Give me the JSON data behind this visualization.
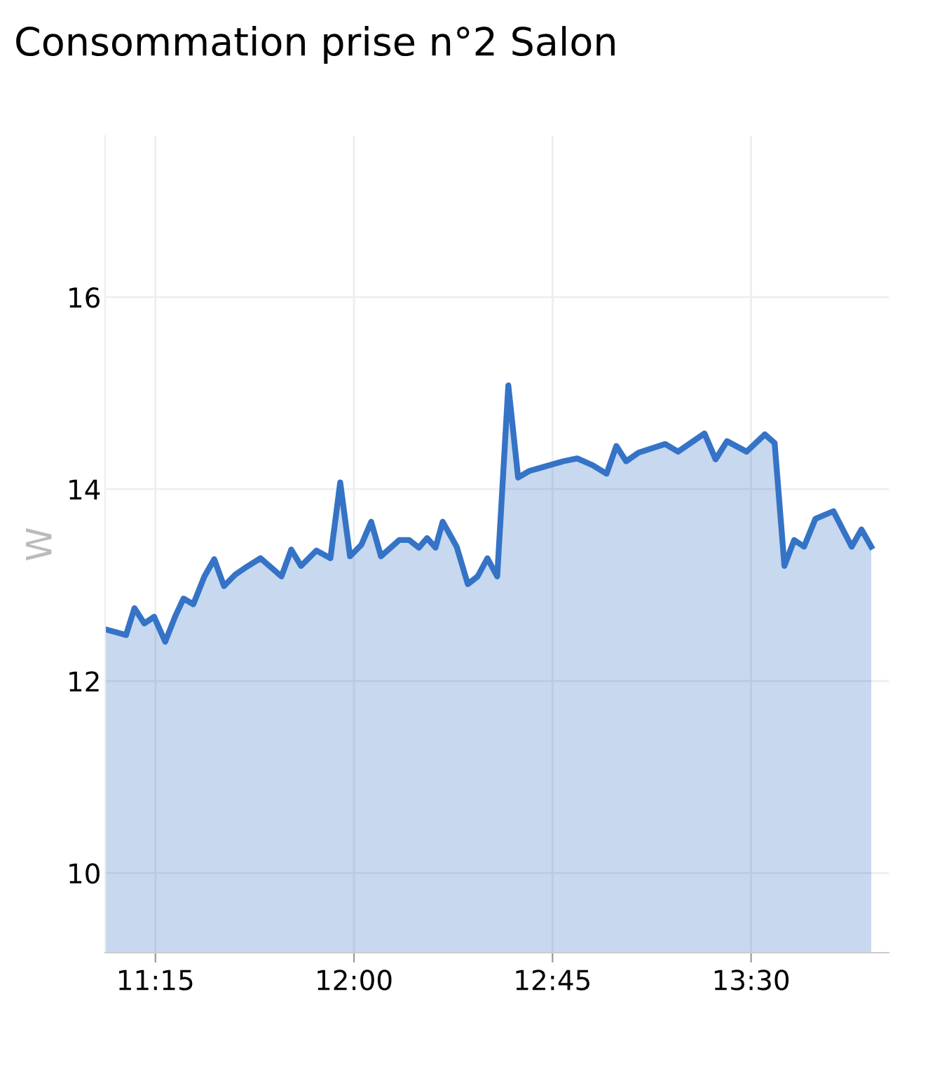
{
  "chart_data": {
    "type": "area",
    "title": "Consommation prise n°2 Salon",
    "ylabel": "W",
    "x": [
      11.06,
      11.139,
      11.171,
      11.208,
      11.245,
      11.287,
      11.324,
      11.356,
      11.393,
      11.435,
      11.472,
      11.509,
      11.552,
      11.589,
      11.647,
      11.726,
      11.763,
      11.8,
      11.858,
      11.911,
      11.948,
      11.985,
      12.028,
      12.065,
      12.102,
      12.171,
      12.208,
      12.245,
      12.276,
      12.308,
      12.335,
      12.388,
      12.43,
      12.467,
      12.504,
      12.541,
      12.583,
      12.62,
      12.663,
      12.79,
      12.843,
      12.901,
      12.954,
      12.991,
      13.028,
      13.075,
      13.176,
      13.224,
      13.324,
      13.366,
      13.409,
      13.483,
      13.552,
      13.589,
      13.626,
      13.663,
      13.7,
      13.743,
      13.811,
      13.88,
      13.917,
      13.954
    ],
    "series": [
      {
        "color": "#3573c6",
        "values": [
          12.54,
          12.48,
          12.76,
          12.6,
          12.67,
          12.41,
          12.67,
          12.86,
          12.8,
          13.09,
          13.27,
          12.99,
          13.11,
          13.18,
          13.28,
          13.09,
          13.37,
          13.2,
          13.36,
          13.28,
          14.07,
          13.3,
          13.42,
          13.66,
          13.3,
          13.47,
          13.47,
          13.39,
          13.49,
          13.39,
          13.66,
          13.4,
          13.01,
          13.09,
          13.28,
          13.09,
          15.08,
          14.12,
          14.19,
          14.29,
          14.32,
          14.25,
          14.16,
          14.45,
          14.29,
          14.38,
          14.47,
          14.39,
          14.58,
          14.31,
          14.5,
          14.39,
          14.57,
          14.48,
          13.2,
          13.47,
          13.4,
          13.69,
          13.77,
          13.4,
          13.58,
          13.4
        ]
      }
    ],
    "xlim": [
      11.06,
      14.02
    ],
    "ylim": [
      9.17,
      17.68
    ],
    "xticks": [
      {
        "value": 11.25,
        "label": "11:15"
      },
      {
        "value": 12.0,
        "label": "12:00"
      },
      {
        "value": 12.75,
        "label": "12:45"
      },
      {
        "value": 13.5,
        "label": "13:30"
      }
    ],
    "yticks": [
      10,
      12,
      14,
      16
    ],
    "grid": true,
    "line_style": "solid"
  }
}
